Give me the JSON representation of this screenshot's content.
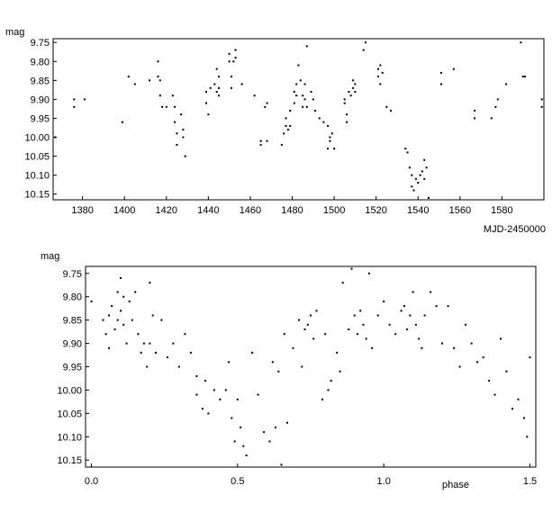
{
  "chart_data": [
    {
      "type": "scatter",
      "ylabel": "mag",
      "xlabel": "MJD-2450000",
      "xlim": [
        1366,
        1600
      ],
      "ylim": [
        9.74,
        10.165
      ],
      "y_inverted": true,
      "xticks": [
        1380,
        1400,
        1420,
        1440,
        1460,
        1480,
        1500,
        1520,
        1540,
        1560,
        1580
      ],
      "yticks": [
        9.75,
        9.8,
        9.85,
        9.9,
        9.95,
        10.0,
        10.05,
        10.1,
        10.15
      ],
      "ytick_labels": [
        "9.75",
        "9.80",
        "9.85",
        "9.90",
        "9.95",
        "10.00",
        "10.05",
        "10.10",
        "10.15"
      ],
      "series": [
        {
          "x": [
            1367,
            1376,
            1376,
            1381,
            1399,
            1402,
            1405,
            1412,
            1416,
            1416,
            1417,
            1417,
            1418,
            1420,
            1423,
            1424,
            1424,
            1425,
            1425,
            1427,
            1428,
            1428,
            1429,
            1439,
            1439,
            1440,
            1441,
            1443,
            1444,
            1444,
            1445,
            1445,
            1445,
            1450,
            1450,
            1451,
            1451,
            1452,
            1453,
            1453,
            1456,
            1462,
            1465,
            1465,
            1467,
            1468,
            1468,
            1475,
            1476,
            1477,
            1477,
            1478,
            1479,
            1479,
            1481,
            1481,
            1482,
            1482,
            1483,
            1484,
            1485,
            1485,
            1486,
            1486,
            1487,
            1487,
            1489,
            1490,
            1491,
            1493,
            1495,
            1497,
            1497,
            1498,
            1498,
            1499,
            1500,
            1505,
            1505,
            1506,
            1506,
            1507,
            1508,
            1509,
            1509,
            1510,
            1510,
            1514,
            1515,
            1521,
            1521,
            1522,
            1522,
            1523,
            1525,
            1527,
            1534,
            1535,
            1536,
            1537,
            1537,
            1538,
            1539,
            1540,
            1541,
            1542,
            1543,
            1543,
            1544,
            1545,
            1551,
            1551,
            1557,
            1567,
            1567,
            1575,
            1577,
            1578,
            1582,
            1589,
            1590,
            1591,
            1599,
            1599
          ],
          "y": [
            10.0,
            9.9,
            9.92,
            9.9,
            9.96,
            9.84,
            9.86,
            9.85,
            9.8,
            9.84,
            9.85,
            9.89,
            9.92,
            9.92,
            9.89,
            9.92,
            9.96,
            9.99,
            10.02,
            9.94,
            9.98,
            10.0,
            10.05,
            9.88,
            9.91,
            9.94,
            9.87,
            9.86,
            9.82,
            9.88,
            9.84,
            9.89,
            9.87,
            9.78,
            9.8,
            9.84,
            9.87,
            9.8,
            9.77,
            9.79,
            9.86,
            9.89,
            10.01,
            10.02,
            9.92,
            9.91,
            10.01,
            10.02,
            9.99,
            9.95,
            9.97,
            9.98,
            9.93,
            9.97,
            9.88,
            9.91,
            9.86,
            9.89,
            9.81,
            9.85,
            9.89,
            9.92,
            9.86,
            9.9,
            9.76,
            9.92,
            9.88,
            9.9,
            9.93,
            9.95,
            9.96,
            10.03,
            9.97,
            10.0,
            10.01,
            9.99,
            10.03,
            9.9,
            9.91,
            9.94,
            9.96,
            9.88,
            9.89,
            9.85,
            9.87,
            9.86,
            9.88,
            9.77,
            9.75,
            9.82,
            9.84,
            9.81,
            9.86,
            9.83,
            9.92,
            9.93,
            10.03,
            10.04,
            10.08,
            10.1,
            10.13,
            10.14,
            10.11,
            10.12,
            10.1,
            10.09,
            10.11,
            10.06,
            10.08,
            10.16,
            9.83,
            9.86,
            9.82,
            9.93,
            9.95,
            9.95,
            9.92,
            9.9,
            9.86,
            9.75,
            9.84,
            9.84,
            9.9,
            9.92
          ]
        }
      ]
    },
    {
      "type": "scatter",
      "ylabel": "mag",
      "xlabel": "phase",
      "xlim": [
        -0.02,
        1.52
      ],
      "ylim": [
        9.735,
        10.165
      ],
      "y_inverted": true,
      "xticks": [
        0.0,
        0.5,
        1.0,
        1.5
      ],
      "xtick_labels": [
        "0.0",
        "0.5",
        "1.0",
        "1.5"
      ],
      "yticks": [
        9.75,
        9.8,
        9.85,
        9.9,
        9.95,
        10.0,
        10.05,
        10.1,
        10.15
      ],
      "ytick_labels": [
        "9.75",
        "9.80",
        "9.85",
        "9.90",
        "9.95",
        "10.00",
        "10.05",
        "10.10",
        "10.15"
      ],
      "series": [
        {
          "x": [
            0.0,
            0.04,
            0.05,
            0.06,
            0.06,
            0.07,
            0.08,
            0.09,
            0.09,
            0.1,
            0.1,
            0.11,
            0.11,
            0.12,
            0.13,
            0.14,
            0.15,
            0.16,
            0.17,
            0.18,
            0.19,
            0.2,
            0.2,
            0.21,
            0.22,
            0.24,
            0.26,
            0.28,
            0.3,
            0.32,
            0.34,
            0.36,
            0.36,
            0.38,
            0.39,
            0.4,
            0.42,
            0.44,
            0.46,
            0.47,
            0.48,
            0.49,
            0.5,
            0.51,
            0.52,
            0.53,
            0.55,
            0.57,
            0.59,
            0.61,
            0.62,
            0.63,
            0.64,
            0.65,
            0.66,
            0.67,
            0.69,
            0.71,
            0.72,
            0.73,
            0.74,
            0.75,
            0.76,
            0.77,
            0.79,
            0.8,
            0.81,
            0.82,
            0.84,
            0.85,
            0.86,
            0.88,
            0.89,
            0.9,
            0.91,
            0.92,
            0.93,
            0.94,
            0.95,
            0.96,
            0.98,
            1.0,
            1.02,
            1.04,
            1.06,
            1.07,
            1.08,
            1.09,
            1.1,
            1.11,
            1.12,
            1.13,
            1.14,
            1.16,
            1.18,
            1.2,
            1.22,
            1.24,
            1.26,
            1.28,
            1.3,
            1.32,
            1.34,
            1.36,
            1.38,
            1.4,
            1.42,
            1.44,
            1.46,
            1.48,
            1.49,
            1.5
          ],
          "y": [
            9.81,
            9.85,
            9.88,
            9.91,
            9.84,
            9.82,
            9.87,
            9.79,
            9.85,
            9.76,
            9.83,
            9.86,
            9.8,
            9.9,
            9.81,
            9.85,
            9.79,
            9.88,
            9.92,
            9.9,
            9.95,
            9.77,
            9.9,
            9.84,
            9.92,
            9.85,
            9.93,
            9.9,
            9.95,
            9.88,
            9.92,
            9.97,
            10.01,
            10.04,
            9.98,
            10.05,
            10.0,
            10.02,
            10.0,
            9.94,
            10.06,
            10.11,
            10.02,
            10.08,
            10.12,
            10.14,
            9.92,
            10.01,
            10.09,
            10.11,
            9.94,
            10.08,
            9.96,
            10.16,
            9.88,
            10.07,
            9.91,
            9.85,
            9.95,
            9.87,
            9.86,
            9.84,
            9.89,
            9.83,
            10.02,
            9.88,
            10.0,
            9.98,
            9.92,
            9.96,
            9.77,
            9.87,
            9.74,
            9.84,
            9.88,
            9.83,
            9.86,
            9.89,
            9.75,
            9.91,
            9.84,
            9.81,
            9.86,
            9.88,
            9.83,
            9.82,
            9.87,
            9.84,
            9.79,
            9.86,
            9.89,
            9.91,
            9.84,
            9.79,
            9.82,
            9.9,
            9.82,
            9.91,
            9.95,
            9.86,
            9.9,
            9.94,
            9.93,
            9.98,
            10.01,
            9.89,
            9.96,
            10.04,
            10.02,
            10.06,
            10.1,
            9.93
          ]
        }
      ]
    }
  ]
}
